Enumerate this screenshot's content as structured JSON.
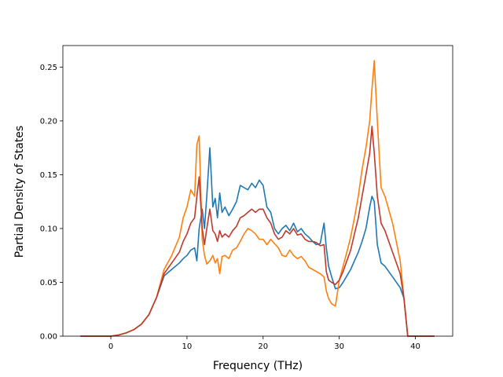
{
  "chart_data": {
    "type": "line",
    "title": "",
    "xlabel": "Frequency (THz)",
    "ylabel": "Partial Density of States",
    "xlim": [
      -6.3,
      44.9
    ],
    "ylim": [
      0.0,
      0.27
    ],
    "xticks": [
      0,
      10,
      20,
      30,
      40
    ],
    "xtick_labels": [
      "0",
      "10",
      "20",
      "30",
      "40"
    ],
    "yticks": [
      0.0,
      0.05,
      0.1,
      0.15,
      0.2,
      0.25
    ],
    "ytick_labels": [
      "0.00",
      "0.05",
      "0.10",
      "0.15",
      "0.20",
      "0.25"
    ],
    "grid": false,
    "legend": false,
    "series": [
      {
        "color": "#1f77b4",
        "x": [
          -4,
          -2,
          0,
          1,
          2,
          3,
          4,
          5,
          6,
          7,
          8,
          9,
          9.5,
          10,
          10.5,
          11,
          11.3,
          11.6,
          12,
          12.3,
          12.6,
          13,
          13.4,
          13.7,
          14,
          14.3,
          14.6,
          15,
          15.5,
          16,
          16.5,
          17,
          17.5,
          18,
          18.5,
          19,
          19.5,
          20,
          20.5,
          21,
          21.5,
          22,
          22.5,
          23,
          23.5,
          24,
          24.5,
          25,
          25.5,
          26,
          26.5,
          27,
          27.5,
          28,
          28.3,
          28.6,
          29,
          29.5,
          30,
          30.5,
          31,
          31.5,
          32,
          32.5,
          33,
          33.5,
          34,
          34.3,
          34.6,
          35,
          35.5,
          36,
          37,
          38,
          38.5,
          39,
          40,
          42.5
        ],
        "y": [
          0.0,
          0.0,
          0.0,
          0.001,
          0.003,
          0.006,
          0.011,
          0.02,
          0.036,
          0.056,
          0.062,
          0.068,
          0.072,
          0.075,
          0.08,
          0.082,
          0.07,
          0.1,
          0.118,
          0.1,
          0.13,
          0.175,
          0.12,
          0.128,
          0.11,
          0.133,
          0.115,
          0.12,
          0.112,
          0.118,
          0.125,
          0.14,
          0.138,
          0.136,
          0.142,
          0.138,
          0.145,
          0.14,
          0.12,
          0.115,
          0.1,
          0.095,
          0.1,
          0.103,
          0.098,
          0.105,
          0.097,
          0.1,
          0.095,
          0.092,
          0.088,
          0.085,
          0.086,
          0.105,
          0.082,
          0.065,
          0.055,
          0.044,
          0.045,
          0.05,
          0.056,
          0.062,
          0.07,
          0.078,
          0.088,
          0.1,
          0.12,
          0.13,
          0.125,
          0.085,
          0.068,
          0.065,
          0.055,
          0.045,
          0.035,
          0.0,
          0.0,
          0.0
        ]
      },
      {
        "color": "#ff7f0e",
        "x": [
          -4,
          -2,
          0,
          1,
          2,
          3,
          4,
          5,
          6,
          7,
          8,
          9,
          9.5,
          10,
          10.5,
          11,
          11.3,
          11.6,
          12,
          12.3,
          12.6,
          13,
          13.4,
          13.7,
          14,
          14.3,
          14.6,
          15,
          15.5,
          16,
          16.5,
          17,
          17.5,
          18,
          18.5,
          19,
          19.5,
          20,
          20.5,
          21,
          21.5,
          22,
          22.5,
          23,
          23.5,
          24,
          24.5,
          25,
          25.5,
          26,
          26.5,
          27,
          27.5,
          28,
          28.3,
          28.6,
          29,
          29.5,
          30,
          30.5,
          31,
          31.5,
          32,
          32.5,
          33,
          33.5,
          34,
          34.3,
          34.6,
          35,
          35.5,
          36,
          37,
          38,
          38.5,
          39,
          40,
          42.5
        ],
        "y": [
          0.0,
          0.0,
          0.0,
          0.001,
          0.003,
          0.006,
          0.011,
          0.02,
          0.036,
          0.062,
          0.075,
          0.092,
          0.11,
          0.12,
          0.136,
          0.13,
          0.178,
          0.186,
          0.09,
          0.075,
          0.067,
          0.07,
          0.075,
          0.068,
          0.072,
          0.058,
          0.074,
          0.075,
          0.072,
          0.08,
          0.082,
          0.088,
          0.095,
          0.1,
          0.098,
          0.095,
          0.09,
          0.09,
          0.085,
          0.09,
          0.086,
          0.082,
          0.075,
          0.074,
          0.08,
          0.075,
          0.072,
          0.074,
          0.07,
          0.064,
          0.062,
          0.06,
          0.058,
          0.055,
          0.042,
          0.035,
          0.03,
          0.028,
          0.052,
          0.065,
          0.078,
          0.092,
          0.11,
          0.13,
          0.155,
          0.175,
          0.2,
          0.23,
          0.256,
          0.2,
          0.138,
          0.13,
          0.105,
          0.07,
          0.035,
          0.0,
          0.0,
          0.0
        ]
      },
      {
        "color": "#c0392b",
        "x": [
          -4,
          -2,
          0,
          1,
          2,
          3,
          4,
          5,
          6,
          7,
          8,
          9,
          9.5,
          10,
          10.5,
          11,
          11.3,
          11.6,
          12,
          12.3,
          12.6,
          13,
          13.4,
          13.7,
          14,
          14.3,
          14.6,
          15,
          15.5,
          16,
          16.5,
          17,
          17.5,
          18,
          18.5,
          19,
          19.5,
          20,
          20.5,
          21,
          21.5,
          22,
          22.5,
          23,
          23.5,
          24,
          24.5,
          25,
          25.5,
          26,
          26.5,
          27,
          27.5,
          28,
          28.3,
          28.6,
          29,
          29.5,
          30,
          30.5,
          31,
          31.5,
          32,
          32.5,
          33,
          33.5,
          34,
          34.3,
          34.6,
          35,
          35.5,
          36,
          37,
          38,
          38.5,
          39,
          40,
          42.5
        ],
        "y": [
          0.0,
          0.0,
          0.0,
          0.001,
          0.003,
          0.006,
          0.011,
          0.02,
          0.036,
          0.058,
          0.068,
          0.078,
          0.088,
          0.095,
          0.105,
          0.11,
          0.13,
          0.148,
          0.1,
          0.085,
          0.1,
          0.118,
          0.098,
          0.095,
          0.088,
          0.098,
          0.092,
          0.095,
          0.092,
          0.098,
          0.102,
          0.11,
          0.112,
          0.115,
          0.118,
          0.115,
          0.118,
          0.118,
          0.11,
          0.105,
          0.095,
          0.09,
          0.092,
          0.098,
          0.095,
          0.1,
          0.094,
          0.095,
          0.09,
          0.088,
          0.088,
          0.087,
          0.084,
          0.085,
          0.06,
          0.052,
          0.05,
          0.048,
          0.052,
          0.06,
          0.07,
          0.08,
          0.095,
          0.11,
          0.13,
          0.15,
          0.17,
          0.195,
          0.17,
          0.13,
          0.105,
          0.098,
          0.078,
          0.058,
          0.035,
          0.0,
          0.0,
          0.0
        ]
      }
    ]
  }
}
